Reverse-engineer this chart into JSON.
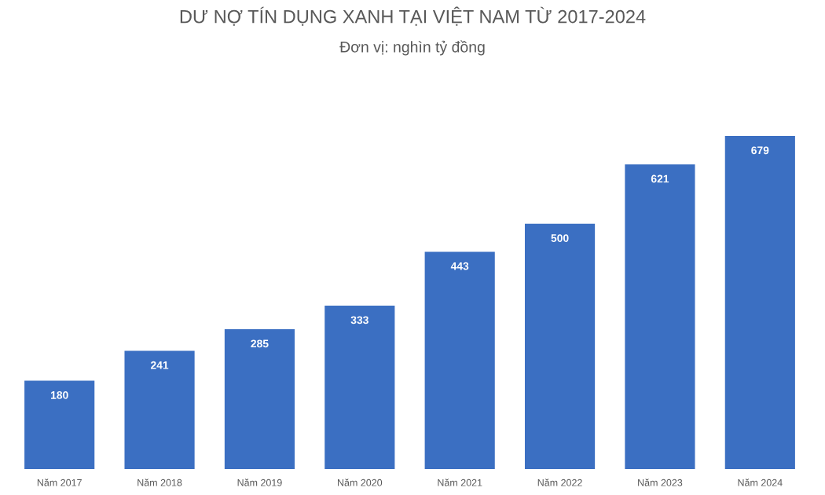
{
  "chart_data": {
    "type": "bar",
    "title": "DƯ NỢ TÍN DỤNG XANH TẠI VIỆT NAM TỪ 2017-2024",
    "subtitle": "Đơn vị: nghìn tỷ đồng",
    "categories": [
      "Năm 2017",
      "Năm 2018",
      "Năm 2019",
      "Năm 2020",
      "Năm 2021",
      "Năm 2022",
      "Năm 2023",
      "Năm 2024"
    ],
    "values": [
      180,
      241,
      285,
      333,
      443,
      500,
      621,
      679
    ],
    "color": "#3b6fc2",
    "data_labels": true,
    "grid": false,
    "legend": false,
    "tick_labels": "x"
  }
}
